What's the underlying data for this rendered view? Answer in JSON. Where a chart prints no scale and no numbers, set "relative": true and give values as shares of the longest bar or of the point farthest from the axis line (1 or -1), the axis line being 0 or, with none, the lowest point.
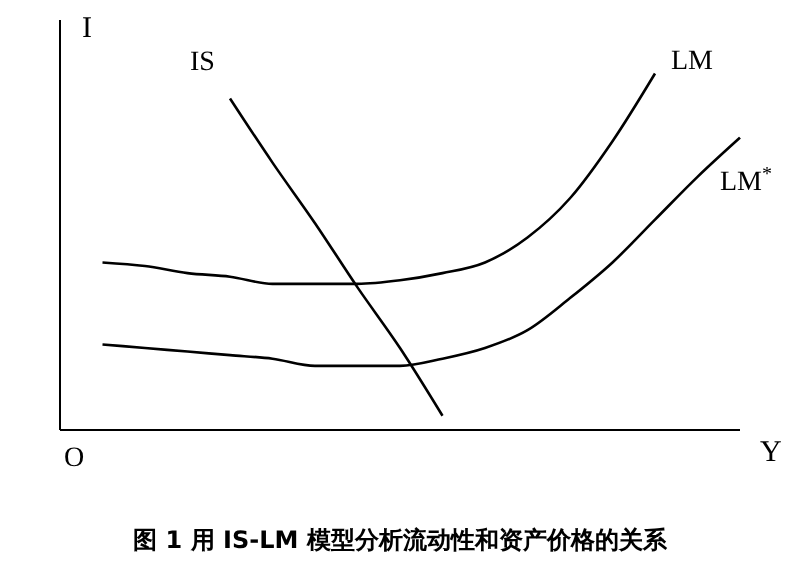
{
  "chart_data": {
    "type": "line",
    "title": "图 1 用 IS-LM 模型分析流动性和资产价格的关系",
    "xlabel": "Y",
    "ylabel": "I",
    "annotations": [
      "O"
    ],
    "relative": true,
    "marker": "none",
    "categories": [
      null,
      null,
      null,
      null,
      null,
      null,
      null,
      null,
      null,
      null,
      null,
      null,
      null,
      null,
      null,
      null,
      null
    ],
    "series": [
      {
        "name": "IS",
        "color": "#000000",
        "values": [
          null,
          null,
          null,
          null,
          0.93,
          0.75,
          0.58,
          0.4,
          0.23,
          0.04,
          null,
          null,
          null,
          null,
          null,
          null,
          null
        ]
      },
      {
        "name": "LM",
        "color": "#000000",
        "values": [
          null,
          0.47,
          0.46,
          0.44,
          0.43,
          0.41,
          0.41,
          0.41,
          0.42,
          0.44,
          0.47,
          0.54,
          0.65,
          0.81,
          1,
          null,
          null
        ]
      },
      {
        "name": "LM$^{*}$",
        "color": "#000000",
        "values": [
          null,
          0.24,
          0.23,
          0.22,
          0.21,
          0.2,
          0.18,
          0.18,
          0.18,
          0.2,
          0.23,
          0.28,
          0.37,
          0.47,
          0.59,
          0.71,
          0.82
        ]
      }
    ]
  }
}
